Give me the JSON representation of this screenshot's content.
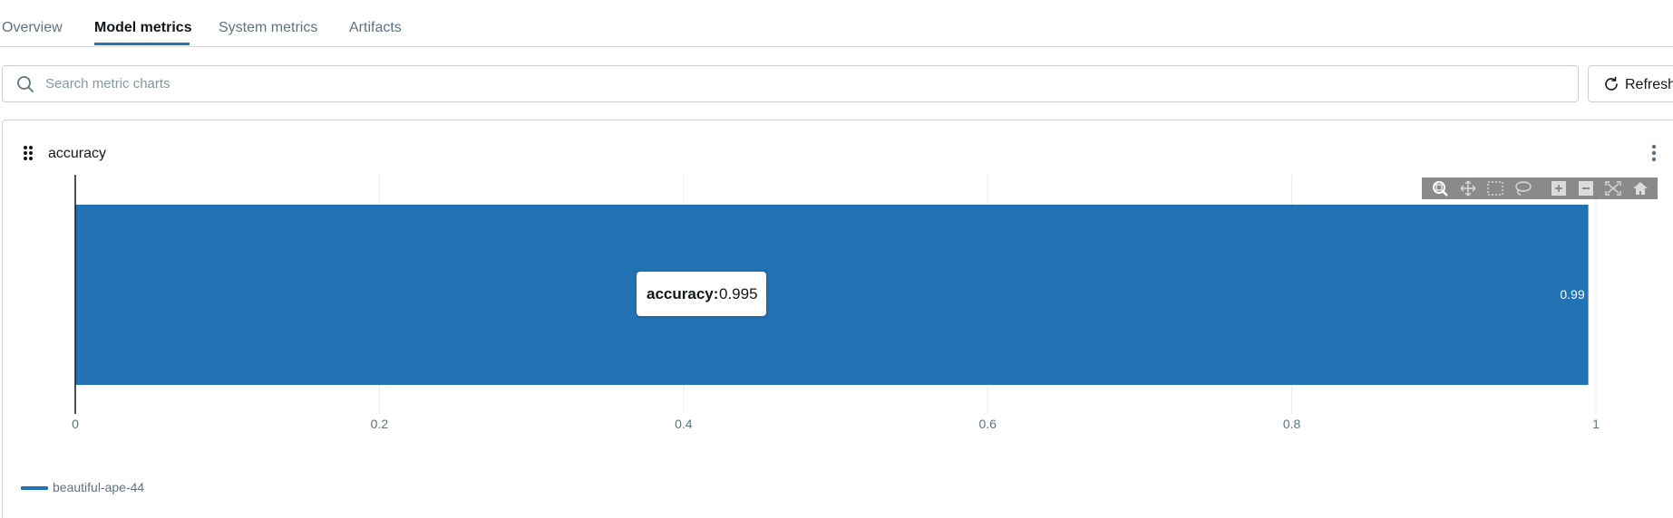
{
  "tabs": [
    {
      "label": "Overview",
      "active": false
    },
    {
      "label": "Model metrics",
      "active": true
    },
    {
      "label": "System metrics",
      "active": false
    },
    {
      "label": "Artifacts",
      "active": false
    }
  ],
  "search": {
    "placeholder": "Search metric charts",
    "value": ""
  },
  "toolbar": {
    "refresh_label": "Refresh"
  },
  "card": {
    "title": "accuracy"
  },
  "tooltip": {
    "label": "accuracy:",
    "value": "0.995"
  },
  "modebar": {
    "icons": [
      "zoom-icon",
      "pan-icon",
      "box-select-icon",
      "lasso-select-icon",
      "zoom-in-icon",
      "zoom-out-icon",
      "autoscale-icon",
      "reset-axes-icon"
    ]
  },
  "colors": {
    "accent": "#2272b4",
    "bar": "#2272b4",
    "text": "#11171c",
    "muted": "#5f7281"
  },
  "chart_data": {
    "type": "bar",
    "orientation": "horizontal",
    "title": "accuracy",
    "categories": [
      "beautiful-ape-44"
    ],
    "series": [
      {
        "name": "beautiful-ape-44",
        "values": [
          0.995
        ]
      }
    ],
    "data_labels": [
      "0.99"
    ],
    "xlim": [
      0,
      1
    ],
    "xticks": [
      0,
      0.2,
      0.4,
      0.6,
      0.8,
      1
    ],
    "xtick_labels": [
      "0",
      "0.2",
      "0.4",
      "0.6",
      "0.8",
      "1"
    ],
    "grid": true,
    "legend": "bottom-left"
  }
}
